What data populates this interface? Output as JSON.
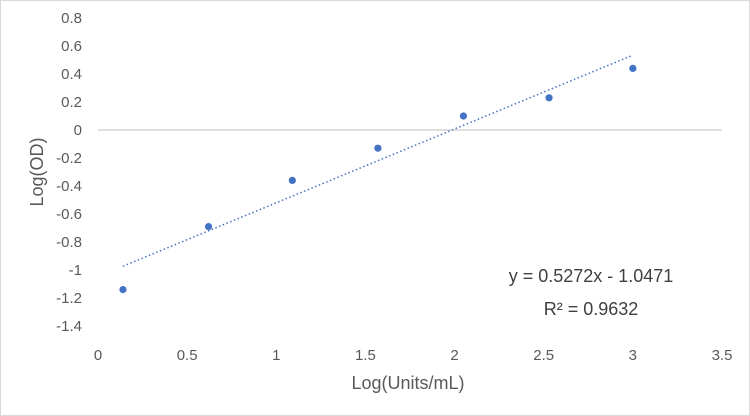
{
  "chart_data": {
    "type": "scatter",
    "title": "",
    "xlabel": "Log(Units/mL)",
    "ylabel": "Log(OD)",
    "xlim": [
      0,
      3.5
    ],
    "ylim": [
      -1.4,
      0.8
    ],
    "x_ticks": [
      "0",
      "0.5",
      "1",
      "1.5",
      "2",
      "2.5",
      "3",
      "3.5"
    ],
    "y_ticks": [
      "0.8",
      "0.6",
      "0.4",
      "0.2",
      "0",
      "-0.2",
      "-0.4",
      "-0.6",
      "-0.8",
      "-1",
      "-1.2",
      "-1.4"
    ],
    "grid": false,
    "series": [
      {
        "x": [
          0.14,
          0.62,
          1.09,
          1.57,
          2.05,
          2.53,
          3.0
        ],
        "y": [
          -1.14,
          -0.69,
          -0.36,
          -0.13,
          0.1,
          0.23,
          0.44
        ],
        "color": "#4472C4"
      }
    ],
    "trendline": {
      "slope": 0.5272,
      "intercept": -1.0471,
      "x_range": [
        0.14,
        3.0
      ],
      "style": "dotted",
      "color": "#4472C4"
    },
    "annotations": {
      "equation": "y = 0.5272x - 1.0471",
      "r_squared": "R² = 0.9632"
    }
  }
}
